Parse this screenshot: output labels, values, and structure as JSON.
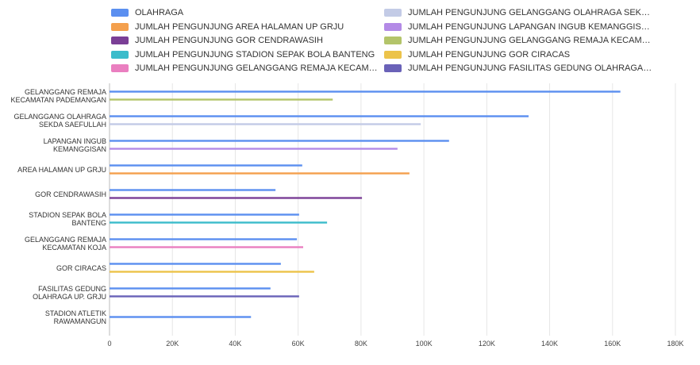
{
  "chart_data": {
    "type": "hbar",
    "categories": [
      "GELANGGANG REMAJA KECAMATAN PADEMANGAN",
      "GELANGGANG OLAHRAGA SEKDA SAEFULLAH",
      "LAPANGAN INGUB KEMANGGISAN",
      "AREA HALAMAN UP GRJU",
      "GOR CENDRAWASIH",
      "STADION SEPAK BOLA BANTENG",
      "GELANGGANG REMAJA KECAMATAN KOJA",
      "GOR CIRACAS",
      "FASILITAS GEDUNG OLAHRAGA UP. GRJU",
      "STADION ATLETIK RAWAMANGUN"
    ],
    "series": [
      {
        "name": "OLAHRAGA",
        "color": "#5b8ff0",
        "values": [
          162500,
          133300,
          108000,
          61300,
          52800,
          60300,
          59600,
          54500,
          51200,
          45000
        ]
      },
      {
        "name": "JUMLAH PENGUNJUNG GELANGGANG OLAHRAGA SEK…",
        "color": "#c3cbe6",
        "values": [
          null,
          99000,
          null,
          null,
          null,
          null,
          null,
          null,
          null,
          null
        ]
      },
      {
        "name": "JUMLAH PENGUNJUNG AREA HALAMAN UP GRJU",
        "color": "#f4a04d",
        "values": [
          null,
          null,
          null,
          95400,
          null,
          null,
          null,
          null,
          null,
          null
        ]
      },
      {
        "name": "JUMLAH PENGUNJUNG LAPANGAN INGUB KEMANGGIS…",
        "color": "#b38ae6",
        "values": [
          null,
          null,
          91600,
          null,
          null,
          null,
          null,
          null,
          null,
          null
        ]
      },
      {
        "name": "JUMLAH PENGUNJUNG GOR CENDRAWASIH",
        "color": "#7b3f96",
        "values": [
          null,
          null,
          null,
          null,
          80300,
          null,
          null,
          null,
          null,
          null
        ]
      },
      {
        "name": "JUMLAH PENGUNJUNG GELANGGANG REMAJA KECAM…",
        "color": "#b3c46a",
        "values": [
          71000,
          null,
          null,
          null,
          null,
          null,
          null,
          null,
          null,
          null
        ]
      },
      {
        "name": "JUMLAH PENGUNJUNG STADION SEPAK BOLA BANTENG",
        "color": "#3bbccb",
        "values": [
          null,
          null,
          null,
          null,
          null,
          69200,
          null,
          null,
          null,
          null
        ]
      },
      {
        "name": "JUMLAH PENGUNJUNG GOR CIRACAS",
        "color": "#ecc34a",
        "values": [
          null,
          null,
          null,
          null,
          null,
          null,
          null,
          65100,
          null,
          null
        ]
      },
      {
        "name": "JUMLAH PENGUNJUNG GELANGGANG REMAJA KECAM…",
        "color": "#ea7fc0",
        "values": [
          null,
          null,
          null,
          null,
          null,
          null,
          61600,
          null,
          null,
          null
        ]
      },
      {
        "name": "JUMLAH PENGUNJUNG FASILITAS GEDUNG OLAHRAGA…",
        "color": "#6a62b8",
        "values": [
          null,
          null,
          null,
          null,
          null,
          null,
          null,
          null,
          60300,
          null
        ]
      }
    ],
    "xlim": [
      0,
      180000
    ],
    "xticks": [
      0,
      {
        "value": 20000,
        "label": "20K"
      },
      {
        "value": 40000,
        "label": "40K"
      },
      {
        "value": 60000,
        "label": "60K"
      },
      {
        "value": 80000,
        "label": "80K"
      },
      {
        "value": 100000,
        "label": "100K"
      },
      {
        "value": 120000,
        "label": "120K"
      },
      {
        "value": 140000,
        "label": "140K"
      },
      {
        "value": 160000,
        "label": "160K"
      },
      {
        "value": 180000,
        "label": "180K"
      }
    ],
    "grid": true
  }
}
